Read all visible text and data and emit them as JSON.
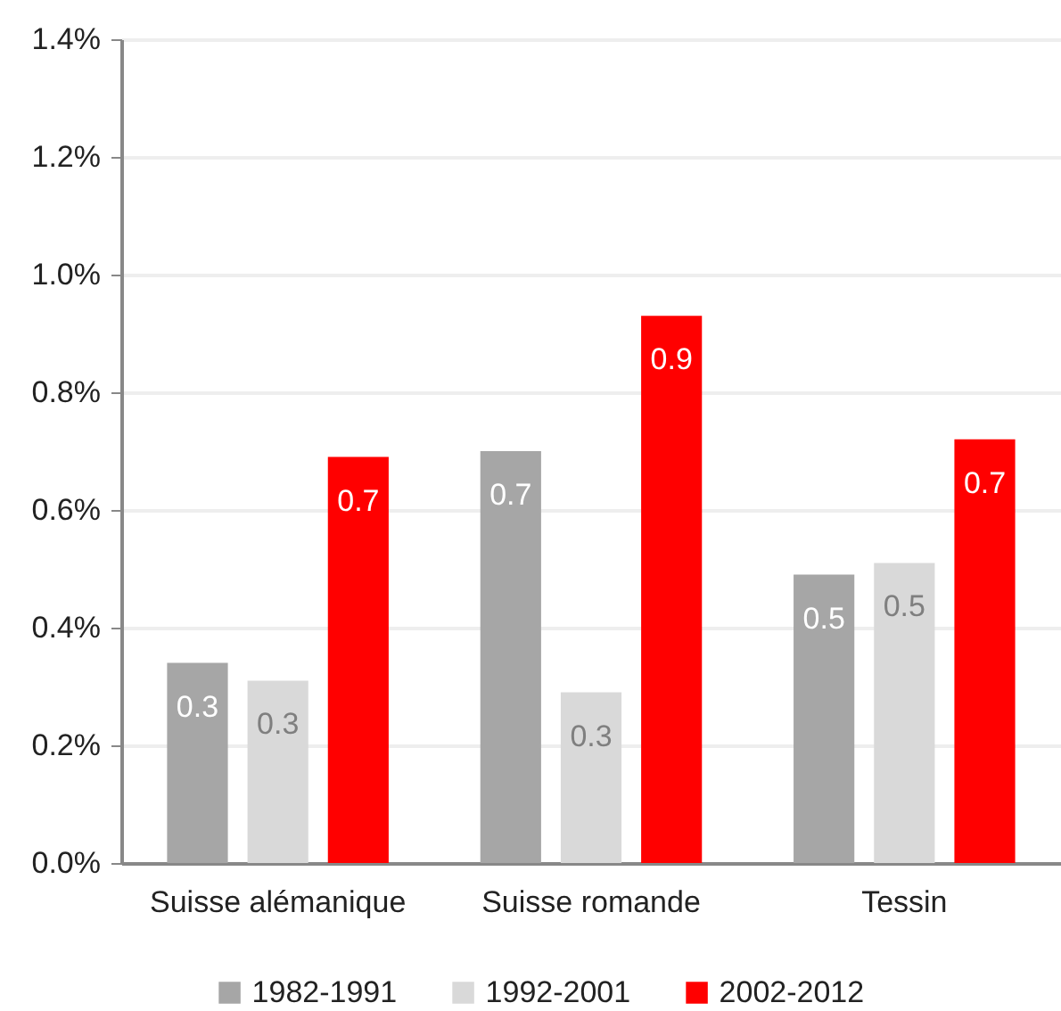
{
  "chart_data": {
    "type": "bar",
    "categories": [
      "Suisse alémanique",
      "Suisse romande",
      "Tessin"
    ],
    "series": [
      {
        "name": "1982-1991",
        "color": "#a6a6a6",
        "values": [
          0.34,
          0.7,
          0.49
        ],
        "value_labels": [
          "0.3",
          "0.7",
          "0.5"
        ]
      },
      {
        "name": "1992-2001",
        "color": "#d9d9d9",
        "values": [
          0.31,
          0.29,
          0.51
        ],
        "value_labels": [
          "0.3",
          "0.3",
          "0.5"
        ]
      },
      {
        "name": "2002-2012",
        "color": "#ff0000",
        "values": [
          0.69,
          0.93,
          0.72
        ],
        "value_labels": [
          "0.7",
          "0.9",
          "0.7"
        ]
      }
    ],
    "ylim": [
      0,
      1.4
    ],
    "yticks": [
      {
        "value": 0,
        "label": "0.0%"
      },
      {
        "value": 0.2,
        "label": "0.2%"
      },
      {
        "value": 0.4,
        "label": "0.4%"
      },
      {
        "value": 0.6,
        "label": "0.6%"
      },
      {
        "value": 0.8,
        "label": "0.8%"
      },
      {
        "value": 1.0,
        "label": "1.0%"
      },
      {
        "value": 1.2,
        "label": "1.2%"
      },
      {
        "value": 1.4,
        "label": "1.4%"
      }
    ],
    "grid": "y",
    "legend": "bottom"
  }
}
